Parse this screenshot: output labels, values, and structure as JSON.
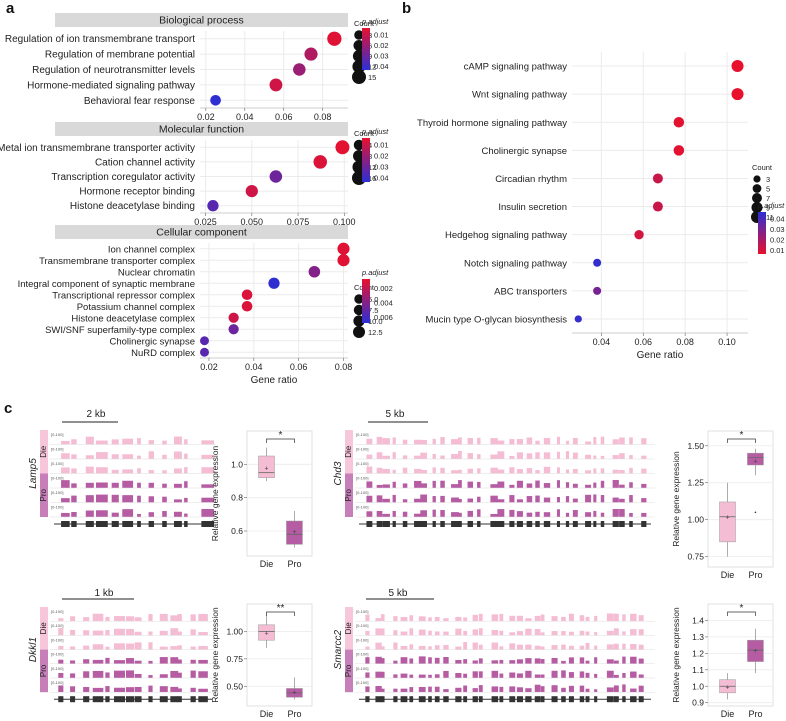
{
  "panel_letters": {
    "a": "a",
    "b": "b",
    "c": "c"
  },
  "colors": {
    "panel_header": "#d9d9d9",
    "grid": "#ebebeb",
    "gradient_high": "#e8112d",
    "gradient_low": "#2b2fd6",
    "die": "#f5bdd3",
    "pro": "#b55ca3",
    "die_label": "#f7c6da",
    "pro_label": "#c77fba"
  },
  "chart_data": [
    {
      "id": "a1",
      "type": "scatter",
      "title": "Biological process",
      "categories": [
        "Regulation of ion transmembrane transport",
        "Regulation of membrane potential",
        "Regulation of neurotransmitter levels",
        "Hormone-mediated signaling pathway",
        "Behavioral fear response"
      ],
      "x": [
        0.086,
        0.074,
        0.068,
        0.056,
        0.025
      ],
      "count": [
        16,
        12,
        10,
        11,
        5
      ],
      "p_adjust": [
        0.004,
        0.015,
        0.02,
        0.008,
        0.044
      ],
      "xlim": [
        0.017,
        0.093
      ],
      "xticks": [
        0.02,
        0.04,
        0.06,
        0.08
      ],
      "xtick_labels": [
        "0.02",
        "0.04",
        "0.06",
        "0.08"
      ],
      "legend_count_title": "Count",
      "legend_count_values": [
        3,
        6,
        9,
        12,
        15
      ],
      "legend_count_labels": [
        "3",
        "6",
        "9",
        "12",
        "15"
      ],
      "legend_p_title": "p.adjust",
      "legend_p_labels": [
        "0.01",
        "0.02",
        "0.03",
        "0.04"
      ],
      "p_range": [
        0.002,
        0.045
      ]
    },
    {
      "id": "a2",
      "type": "scatter",
      "title": "Molecular function",
      "categories": [
        "Metal ion transmembrane transporter activity",
        "Cation channel activity",
        "Transcription coregulator activity",
        "Hormone receptor binding",
        "Histone deacetylase binding"
      ],
      "x": [
        0.099,
        0.087,
        0.063,
        0.05,
        0.029
      ],
      "count": [
        16,
        14,
        10,
        9,
        6
      ],
      "p_adjust": [
        0.003,
        0.005,
        0.03,
        0.008,
        0.035
      ],
      "xlim": [
        0.022,
        0.102
      ],
      "xticks": [
        0.025,
        0.05,
        0.075,
        0.1
      ],
      "xtick_labels": [
        "0.025",
        "0.050",
        "0.075",
        "0.100"
      ],
      "legend_count_title": "Count",
      "legend_count_values": [
        4,
        8,
        12,
        16
      ],
      "legend_count_labels": [
        "4",
        "8",
        "12",
        "16"
      ],
      "legend_p_title": "p.adjust",
      "legend_p_labels": [
        "0.01",
        "0.02",
        "0.03",
        "0.04"
      ],
      "p_range": [
        0.002,
        0.045
      ]
    },
    {
      "id": "a3",
      "type": "scatter",
      "title": "Cellular component",
      "categories": [
        "Ion channel complex",
        "Transmembrane transporter complex",
        "Nuclear chromatin",
        "Integral component of synaptic membrane",
        "Transcriptional repressor complex",
        "Potassium channel complex",
        "Histone deacetylase complex",
        "SWI/SNF superfamily-type complex",
        "Cholinergic synapse",
        "NuRD complex"
      ],
      "x": [
        0.08,
        0.08,
        0.067,
        0.049,
        0.037,
        0.037,
        0.031,
        0.031,
        0.018,
        0.018
      ],
      "count": [
        13,
        13,
        11,
        10,
        8,
        8,
        7,
        7,
        4,
        4
      ],
      "p_adjust": [
        0.0008,
        0.0008,
        0.004,
        0.0068,
        0.001,
        0.001,
        0.0015,
        0.0048,
        0.0055,
        0.0055
      ],
      "xlim": [
        0.016,
        0.082
      ],
      "xticks": [
        0.02,
        0.04,
        0.06,
        0.08
      ],
      "xtick_labels": [
        "0.02",
        "0.04",
        "0.06",
        "0.08"
      ],
      "xlabel": "Gene ratio",
      "legend_count_title": "Count",
      "legend_count_values": [
        5,
        7.5,
        10,
        12.5
      ],
      "legend_count_labels": [
        "5.0",
        "7.5",
        "10.0",
        "12.5"
      ],
      "legend_p_title": "p.adjust",
      "legend_p_labels": [
        "0.002",
        "0.004",
        "0.006"
      ],
      "p_range": [
        0.0005,
        0.007
      ]
    },
    {
      "id": "b",
      "type": "scatter",
      "categories": [
        "cAMP signaling pathway",
        "Wnt signaling pathway",
        "Thyroid hormone signaling pathway",
        "Cholinergic synapse",
        "Circadian rhythm",
        "Insulin secretion",
        "Hedgehog signaling pathway",
        "Notch signaling pathway",
        "ABC transporters",
        "Mucin type O-glycan biosynthesis"
      ],
      "x": [
        0.105,
        0.105,
        0.077,
        0.077,
        0.067,
        0.067,
        0.058,
        0.038,
        0.038,
        0.029
      ],
      "count": [
        11,
        11,
        8,
        8,
        7,
        7,
        6,
        4,
        4,
        3
      ],
      "p_adjust": [
        0.005,
        0.005,
        0.006,
        0.006,
        0.012,
        0.012,
        0.01,
        0.045,
        0.03,
        0.045
      ],
      "xlim": [
        0.026,
        0.11
      ],
      "xticks": [
        0.04,
        0.06,
        0.08,
        0.1
      ],
      "xtick_labels": [
        "0.04",
        "0.06",
        "0.08",
        "0.10"
      ],
      "xlabel": "Gene ratio",
      "legend_count_title": "Count",
      "legend_count_values": [
        3,
        5,
        7,
        9,
        11
      ],
      "legend_count_labels": [
        "3",
        "5",
        "7",
        "9",
        "11"
      ],
      "legend_p_title": "p.adjust",
      "legend_p_labels": [
        "0.04",
        "0.03",
        "0.02",
        "0.01"
      ],
      "p_range": [
        0.005,
        0.047
      ]
    },
    {
      "id": "c_lamp5",
      "type": "box",
      "gene": "Lamp5",
      "scale_label": "2 kb",
      "ylabel": "Relative gene expression",
      "groups": [
        "Die",
        "Pro"
      ],
      "significance": "*",
      "ylim": [
        0.45,
        1.2
      ],
      "yticks": [
        0.6,
        0.8,
        1.0
      ],
      "ytick_labels": [
        "0.6",
        "0.8",
        "1.0"
      ],
      "boxes": [
        {
          "min": 0.9,
          "q1": 0.92,
          "median": 0.95,
          "q3": 1.05,
          "max": 1.1,
          "mean": 0.98
        },
        {
          "min": 0.5,
          "q1": 0.52,
          "median": 0.58,
          "q3": 0.66,
          "max": 0.72,
          "mean": 0.6
        }
      ]
    },
    {
      "id": "c_chd3",
      "type": "box",
      "gene": "Chd3",
      "scale_label": "5 kb",
      "ylabel": "Relative gene expression",
      "groups": [
        "Die",
        "Pro"
      ],
      "significance": "*",
      "ylim": [
        0.68,
        1.6
      ],
      "yticks": [
        0.75,
        1.0,
        1.25,
        1.5
      ],
      "ytick_labels": [
        "0.75",
        "1.00",
        "1.25",
        "1.50"
      ],
      "boxes": [
        {
          "min": 0.75,
          "q1": 0.85,
          "median": 1.02,
          "q3": 1.12,
          "max": 1.25,
          "mean": 1.02
        },
        {
          "min": 1.3,
          "q1": 1.37,
          "median": 1.42,
          "q3": 1.45,
          "max": 1.48,
          "mean": 1.4
        }
      ],
      "outliers": [
        [],
        [
          1.05
        ]
      ]
    },
    {
      "id": "c_dkkl1",
      "type": "box",
      "gene": "Dkkl1",
      "scale_label": "1 kb",
      "ylabel": "Relative gene expression",
      "groups": [
        "Die",
        "Pro"
      ],
      "significance": "**",
      "ylim": [
        0.32,
        1.25
      ],
      "yticks": [
        0.5,
        0.75,
        1.0
      ],
      "ytick_labels": [
        "0.50",
        "0.75",
        "1.00"
      ],
      "boxes": [
        {
          "min": 0.85,
          "q1": 0.92,
          "median": 1.0,
          "q3": 1.06,
          "max": 1.15,
          "mean": 0.99
        },
        {
          "min": 0.38,
          "q1": 0.4,
          "median": 0.44,
          "q3": 0.48,
          "max": 0.58,
          "mean": 0.45
        }
      ]
    },
    {
      "id": "c_smarcc2",
      "type": "box",
      "gene": "Smarcc2",
      "scale_label": "5 kb",
      "ylabel": "Relative gene expression",
      "groups": [
        "Die",
        "Pro"
      ],
      "significance": "*",
      "ylim": [
        0.88,
        1.5
      ],
      "yticks": [
        0.9,
        1.0,
        1.1,
        1.2,
        1.3,
        1.4
      ],
      "ytick_labels": [
        "0.9",
        "1.0",
        "1.1",
        "1.2",
        "1.3",
        "1.4"
      ],
      "boxes": [
        {
          "min": 0.92,
          "q1": 0.96,
          "median": 1.0,
          "q3": 1.04,
          "max": 1.08,
          "mean": 1.0
        },
        {
          "min": 1.08,
          "q1": 1.15,
          "median": 1.22,
          "q3": 1.28,
          "max": 1.35,
          "mean": 1.22
        }
      ]
    }
  ],
  "tracks": {
    "range_label_die": "[0-100]",
    "range_label_pro": "[0-100]",
    "group_die": "Die",
    "group_pro": "Pro"
  }
}
